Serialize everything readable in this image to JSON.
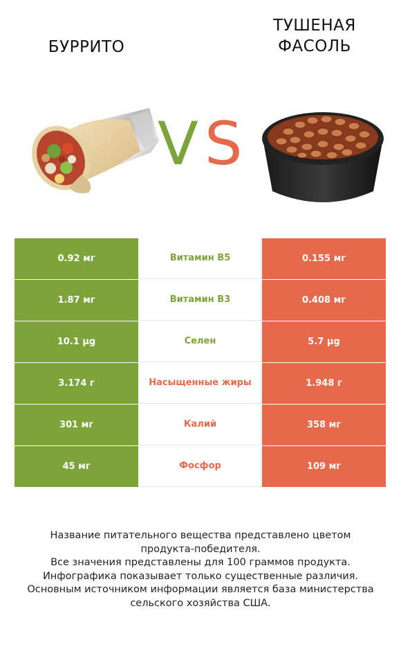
{
  "left_food": {
    "name": "БУРРИТО"
  },
  "right_food": {
    "name_line1": "ТУШЕНАЯ",
    "name_line2": "ФАСОЛЬ"
  },
  "vs": {
    "v": "V",
    "s": "S"
  },
  "colors": {
    "left": "#7da43a",
    "right": "#e5694a",
    "left_text": "#7da43a",
    "right_text": "#e5694a"
  },
  "rows": [
    {
      "left": "0.92 мг",
      "nutrient": "Витамин B5",
      "right": "0.155 мг",
      "winner": "left"
    },
    {
      "left": "1.87 мг",
      "nutrient": "Витамин B3",
      "right": "0.408 мг",
      "winner": "left"
    },
    {
      "left": "10.1 µg",
      "nutrient": "Селен",
      "right": "5.7 µg",
      "winner": "left"
    },
    {
      "left": "3.174 г",
      "nutrient": "Насыщенные жиры",
      "right": "1.948 г",
      "winner": "right"
    },
    {
      "left": "301 мг",
      "nutrient": "Калий",
      "right": "358 мг",
      "winner": "right"
    },
    {
      "left": "45 мг",
      "nutrient": "Фосфор",
      "right": "109 мг",
      "winner": "right"
    }
  ],
  "footer": {
    "line1": "Название питательного вещества представлено цветом",
    "line2": "продукта-победителя.",
    "line3": "Все значения представлены для 100 граммов продукта.",
    "line4": "Инфографика показывает только существенные различия.",
    "line5": "Основным источником информации является база министерства",
    "line6": "сельского хозяйства США."
  }
}
